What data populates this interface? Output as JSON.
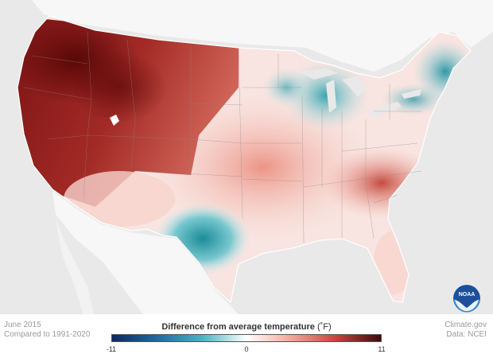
{
  "legend": {
    "title": "Difference from average temperature",
    "unit": "(˚F)",
    "min_label": "-11",
    "mid_label": "0",
    "max_label": "11",
    "colors": [
      "#0b2a5e",
      "#1e6aa0",
      "#45b3c3",
      "#ffffff",
      "#f3a69a",
      "#c6433d",
      "#3d0a0a"
    ]
  },
  "footer": {
    "date": "June 2015",
    "baseline": "Compared to 1991-2020",
    "credit": "Climate.gov",
    "source": "Data: NCEI"
  },
  "logo": {
    "text": "NOAA",
    "icon": "noaa-logo"
  },
  "map": {
    "background": "#e9e9e9",
    "land_fill": "#f7f7f7",
    "anomaly_palette": {
      "cold_strong": "#12808e",
      "cold": "#8fd1d8",
      "neutral": "#ffffff",
      "warm": "#f1a597",
      "warm_strong": "#a52626",
      "warm_extreme": "#5e0a0a"
    }
  }
}
